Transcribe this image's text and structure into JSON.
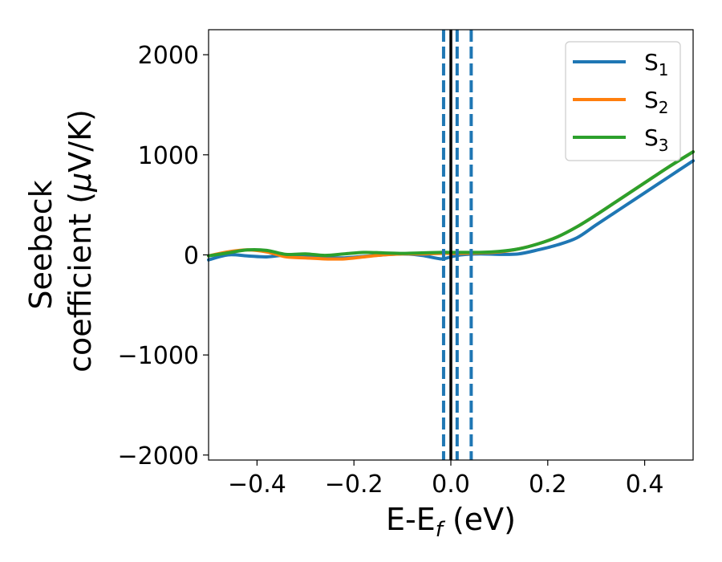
{
  "chart_data": {
    "type": "line",
    "xlabel": "E-E",
    "xlabel_sub": "f",
    "xlabel_unit": " (eV)",
    "ylabel_line1": "Seebeck",
    "ylabel_line2": "coefficient  (",
    "ylabel_mu": "μ",
    "ylabel_unit": "V/K)",
    "xlim": [
      -0.5,
      0.5
    ],
    "ylim": [
      -2050,
      2250
    ],
    "xticks": [
      -0.4,
      -0.2,
      0.0,
      0.2,
      0.4
    ],
    "xtick_labels": [
      "−0.4",
      "−0.2",
      "0.0",
      "0.2",
      "0.4"
    ],
    "yticks": [
      2000,
      1000,
      0,
      -1000,
      -2000
    ],
    "ytick_labels": [
      "2000",
      "1000",
      "0",
      "−1000",
      "−2000"
    ],
    "grid": false,
    "legend_position": "top-right",
    "series": [
      {
        "name": "S",
        "sub": "1",
        "color": "#1f77b4",
        "x": [
          -0.5,
          -0.46,
          -0.42,
          -0.38,
          -0.34,
          -0.3,
          -0.26,
          -0.22,
          -0.18,
          -0.14,
          -0.1,
          -0.06,
          -0.02,
          0.0,
          0.02,
          0.06,
          0.1,
          0.14,
          0.18,
          0.22,
          0.26,
          0.3,
          0.35,
          0.4,
          0.45,
          0.5
        ],
        "y": [
          -50,
          0,
          -10,
          -20,
          0,
          0,
          -25,
          -30,
          -15,
          0,
          10,
          -5,
          -40,
          -20,
          0,
          10,
          5,
          10,
          50,
          100,
          170,
          300,
          460,
          620,
          780,
          940
        ]
      },
      {
        "name": "S",
        "sub": "2",
        "color": "#ff7f0e",
        "x": [
          -0.5,
          -0.46,
          -0.42,
          -0.38,
          -0.34,
          -0.3,
          -0.26,
          -0.22,
          -0.18,
          -0.14,
          -0.1,
          -0.06,
          -0.02,
          0.0,
          0.02,
          0.06,
          0.1,
          0.14,
          0.18,
          0.22,
          0.26,
          0.3,
          0.35,
          0.4,
          0.45,
          0.5
        ],
        "y": [
          -10,
          30,
          50,
          30,
          -20,
          -30,
          -40,
          -40,
          -20,
          0,
          10,
          10,
          15,
          15,
          15,
          20,
          30,
          60,
          110,
          180,
          280,
          400,
          560,
          720,
          880,
          1030
        ]
      },
      {
        "name": "S",
        "sub": "3",
        "color": "#2ca02c",
        "x": [
          -0.5,
          -0.46,
          -0.42,
          -0.38,
          -0.34,
          -0.3,
          -0.26,
          -0.22,
          -0.18,
          -0.14,
          -0.1,
          -0.06,
          -0.02,
          0.0,
          0.02,
          0.06,
          0.1,
          0.14,
          0.18,
          0.22,
          0.26,
          0.3,
          0.35,
          0.4,
          0.45,
          0.5
        ],
        "y": [
          -10,
          20,
          50,
          45,
          5,
          10,
          -5,
          10,
          25,
          20,
          15,
          20,
          25,
          25,
          25,
          25,
          35,
          60,
          110,
          180,
          280,
          400,
          560,
          720,
          880,
          1030
        ]
      }
    ],
    "vlines": [
      {
        "x": 0.0,
        "color": "#000000",
        "style": "solid"
      },
      {
        "x": -0.015,
        "color": "#1f77b4",
        "style": "dashed"
      },
      {
        "x": 0.013,
        "color": "#1f77b4",
        "style": "dashed"
      },
      {
        "x": 0.042,
        "color": "#1f77b4",
        "style": "dashed"
      }
    ]
  }
}
